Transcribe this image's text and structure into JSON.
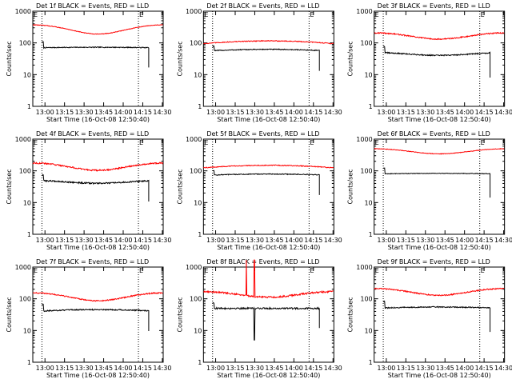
{
  "figure": {
    "name": "RHESSI detector count-rate grid"
  },
  "colors": {
    "events": "#000000",
    "lld": "#ff0000",
    "axes": "#000000",
    "background": "#ffffff"
  },
  "chart_data": [
    {
      "type": "line",
      "detector": "1f",
      "title": "Det 1f BLACK = Events, RED = LLD",
      "xlabel": "Start Time (16-Oct-08 12:50:40)",
      "ylabel": "Counts/sec",
      "xticks": [
        "13:00",
        "13:15",
        "13:30",
        "13:45",
        "14:00",
        "14:15",
        "14:30"
      ],
      "yticks": [
        "1",
        "10",
        "100",
        "1000"
      ],
      "ylim": [
        1,
        1000
      ],
      "yscale": "log",
      "markers": [
        "E",
        "E"
      ],
      "marker_minutes": [
        0,
        81
      ],
      "vlines_minutes": [
        7,
        81
      ],
      "xlim_minutes": [
        0,
        100
      ],
      "time_start": "12:50:40",
      "series": [
        {
          "name": "Events",
          "color": "black",
          "shape": "bump",
          "level": 70,
          "amp": 0.04,
          "t0": 7,
          "t1": 89,
          "edge_start": 1.5,
          "edge_end": 0.4,
          "noise": 0.03
        },
        {
          "name": "LLD",
          "color": "red",
          "shape": "valley",
          "level": 280,
          "amp": 0.32,
          "t0": 0,
          "t1": 100,
          "noise": 0.02
        }
      ]
    },
    {
      "type": "line",
      "detector": "2f",
      "title": "Det 2f BLACK = Events, RED = LLD",
      "xlabel": "Start Time (16-Oct-08 12:50:40)",
      "ylabel": "Counts/sec",
      "xticks": [
        "13:00",
        "13:15",
        "13:30",
        "13:45",
        "14:00",
        "14:15",
        "14:30"
      ],
      "yticks": [
        "1",
        "10",
        "100",
        "1000"
      ],
      "ylim": [
        1,
        1000
      ],
      "yscale": "log",
      "markers": [
        "E",
        "E"
      ],
      "marker_minutes": [
        0,
        81
      ],
      "vlines_minutes": [
        7,
        81
      ],
      "xlim_minutes": [
        0,
        100
      ],
      "time_start": "12:50:40",
      "series": [
        {
          "name": "Events",
          "color": "black",
          "shape": "bump",
          "level": 55,
          "amp": 0.14,
          "t0": 7,
          "t1": 89,
          "edge_start": 1.4,
          "edge_end": 0.4,
          "noise": 0.03
        },
        {
          "name": "LLD",
          "color": "red",
          "shape": "bump",
          "level": 95,
          "amp": 0.22,
          "t0": 0,
          "t1": 100,
          "noise": 0.03
        }
      ]
    },
    {
      "type": "line",
      "detector": "3f",
      "title": "Det 3f BLACK = Events, RED = LLD",
      "xlabel": "Start Time (16-Oct-08 12:50:40)",
      "ylabel": "Counts/sec",
      "xticks": [
        "13:00",
        "13:15",
        "13:30",
        "13:45",
        "14:00",
        "14:15",
        "14:30"
      ],
      "yticks": [
        "1",
        "10",
        "100",
        "1000"
      ],
      "ylim": [
        1,
        1000
      ],
      "yscale": "log",
      "markers": [
        "E",
        "E"
      ],
      "marker_minutes": [
        0,
        81
      ],
      "vlines_minutes": [
        7,
        81
      ],
      "xlim_minutes": [
        0,
        100
      ],
      "time_start": "12:50:40",
      "series": [
        {
          "name": "Events",
          "color": "black",
          "shape": "valley",
          "level": 45,
          "amp": 0.1,
          "t0": 7,
          "t1": 89,
          "edge_start": 1.6,
          "edge_end": 0.3,
          "noise": 0.04
        },
        {
          "name": "LLD",
          "color": "red",
          "shape": "valley",
          "level": 170,
          "amp": 0.22,
          "t0": 0,
          "t1": 100,
          "noise": 0.04
        }
      ]
    },
    {
      "type": "line",
      "detector": "4f",
      "title": "Det 4f BLACK = Events, RED = LLD",
      "xlabel": "Start Time (16-Oct-08 12:50:40)",
      "ylabel": "Counts/sec",
      "xticks": [
        "13:00",
        "13:15",
        "13:30",
        "13:45",
        "14:00",
        "14:15",
        "14:30"
      ],
      "yticks": [
        "1",
        "10",
        "100",
        "1000"
      ],
      "ylim": [
        1,
        1000
      ],
      "yscale": "log",
      "markers": [
        "E",
        "E"
      ],
      "marker_minutes": [
        0,
        81
      ],
      "vlines_minutes": [
        7,
        81
      ],
      "xlim_minutes": [
        0,
        100
      ],
      "time_start": "12:50:40",
      "series": [
        {
          "name": "Events",
          "color": "black",
          "shape": "valley",
          "level": 45,
          "amp": 0.1,
          "t0": 7,
          "t1": 89,
          "edge_start": 1.5,
          "edge_end": 0.4,
          "noise": 0.05
        },
        {
          "name": "LLD",
          "color": "red",
          "shape": "valley",
          "level": 140,
          "amp": 0.26,
          "t0": 0,
          "t1": 100,
          "noise": 0.05
        }
      ]
    },
    {
      "type": "line",
      "detector": "5f",
      "title": "Det 5f BLACK = Events, RED = LLD",
      "xlabel": "Start Time (16-Oct-08 12:50:40)",
      "ylabel": "Counts/sec",
      "xticks": [
        "13:00",
        "13:15",
        "13:30",
        "13:45",
        "14:00",
        "14:15",
        "14:30"
      ],
      "yticks": [
        "1",
        "10",
        "100",
        "1000"
      ],
      "ylim": [
        1,
        1000
      ],
      "yscale": "log",
      "markers": [
        "E",
        "E"
      ],
      "marker_minutes": [
        0,
        81
      ],
      "vlines_minutes": [
        7,
        81
      ],
      "xlim_minutes": [
        0,
        100
      ],
      "time_start": "12:50:40",
      "series": [
        {
          "name": "Events",
          "color": "black",
          "shape": "bump",
          "level": 72,
          "amp": 0.1,
          "t0": 7,
          "t1": 89,
          "edge_start": 1.4,
          "edge_end": 0.4,
          "noise": 0.03
        },
        {
          "name": "LLD",
          "color": "red",
          "shape": "bump",
          "level": 125,
          "amp": 0.2,
          "t0": 0,
          "t1": 100,
          "noise": 0.03
        }
      ]
    },
    {
      "type": "line",
      "detector": "6f",
      "title": "Det 6f BLACK = Events, RED = LLD",
      "xlabel": "Start Time (16-Oct-08 12:50:40)",
      "ylabel": "Counts/sec",
      "xticks": [
        "13:00",
        "13:15",
        "13:30",
        "13:45",
        "14:00",
        "14:15",
        "14:30"
      ],
      "yticks": [
        "1",
        "10",
        "100",
        "1000"
      ],
      "ylim": [
        1,
        1000
      ],
      "yscale": "log",
      "markers": [
        "E",
        "E"
      ],
      "marker_minutes": [
        0,
        81
      ],
      "vlines_minutes": [
        7,
        81
      ],
      "xlim_minutes": [
        0,
        100
      ],
      "time_start": "12:50:40",
      "series": [
        {
          "name": "Events",
          "color": "black",
          "shape": "bump",
          "level": 80,
          "amp": 0.04,
          "t0": 7,
          "t1": 89,
          "edge_start": 1.5,
          "edge_end": 0.3,
          "noise": 0.02
        },
        {
          "name": "LLD",
          "color": "red",
          "shape": "valley",
          "level": 420,
          "amp": 0.18,
          "t0": 0,
          "t1": 100,
          "noise": 0.02
        }
      ]
    },
    {
      "type": "line",
      "detector": "7f",
      "title": "Det 7f BLACK = Events, RED = LLD",
      "xlabel": "Start Time (16-Oct-08 12:50:40)",
      "ylabel": "Counts/sec",
      "xticks": [
        "13:00",
        "13:15",
        "13:30",
        "13:45",
        "14:00",
        "14:15",
        "14:30"
      ],
      "yticks": [
        "1",
        "10",
        "100",
        "1000"
      ],
      "ylim": [
        1,
        1000
      ],
      "yscale": "log",
      "markers": [
        "E",
        "E"
      ],
      "marker_minutes": [
        0,
        81
      ],
      "vlines_minutes": [
        7,
        81
      ],
      "xlim_minutes": [
        0,
        100
      ],
      "time_start": "12:50:40",
      "series": [
        {
          "name": "Events",
          "color": "black",
          "shape": "bump",
          "level": 40,
          "amp": 0.14,
          "t0": 7,
          "t1": 89,
          "edge_start": 1.6,
          "edge_end": 0.4,
          "noise": 0.04
        },
        {
          "name": "LLD",
          "color": "red",
          "shape": "valley",
          "level": 120,
          "amp": 0.28,
          "t0": 0,
          "t1": 100,
          "noise": 0.04
        }
      ]
    },
    {
      "type": "line",
      "detector": "8f",
      "title": "Det 8f BLACK = Events, RED = LLD",
      "xlabel": "Start Time (16-Oct-08 12:50:40)",
      "ylabel": "Counts/sec",
      "xticks": [
        "13:00",
        "13:15",
        "13:30",
        "13:45",
        "14:00",
        "14:15",
        "14:30"
      ],
      "yticks": [
        "1",
        "10",
        "100",
        "1000"
      ],
      "ylim": [
        1,
        1000
      ],
      "yscale": "log",
      "markers": [
        "E",
        "E"
      ],
      "marker_minutes": [
        0,
        81
      ],
      "vlines_minutes": [
        7,
        81
      ],
      "xlim_minutes": [
        0,
        100
      ],
      "time_start": "12:50:40",
      "series": [
        {
          "name": "Events",
          "color": "black",
          "shape": "flat",
          "level": 50,
          "amp": 0.0,
          "t0": 7,
          "t1": 89,
          "edge_start": 1.5,
          "edge_end": 0.4,
          "noise": 0.06,
          "spikes": [
            {
              "minute": 39,
              "factor": 0.1
            }
          ]
        },
        {
          "name": "LLD",
          "color": "red",
          "shape": "valley",
          "level": 140,
          "amp": 0.2,
          "t0": 0,
          "t1": 100,
          "noise": 0.06,
          "spikes": [
            {
              "minute": 33,
              "factor": 12
            },
            {
              "minute": 39,
              "factor": 12
            }
          ]
        }
      ]
    },
    {
      "type": "line",
      "detector": "9f",
      "title": "Det 9f BLACK = Events, RED = LLD",
      "xlabel": "Start Time (16-Oct-08 12:50:40)",
      "ylabel": "Counts/sec",
      "xticks": [
        "13:00",
        "13:15",
        "13:30",
        "13:45",
        "14:00",
        "14:15",
        "14:30"
      ],
      "yticks": [
        "1",
        "10",
        "100",
        "1000"
      ],
      "ylim": [
        1,
        1000
      ],
      "yscale": "log",
      "markers": [
        "E",
        "E"
      ],
      "marker_minutes": [
        0,
        81
      ],
      "vlines_minutes": [
        7,
        81
      ],
      "xlim_minutes": [
        0,
        100
      ],
      "time_start": "12:50:40",
      "series": [
        {
          "name": "Events",
          "color": "black",
          "shape": "bump",
          "level": 50,
          "amp": 0.1,
          "t0": 7,
          "t1": 89,
          "edge_start": 1.6,
          "edge_end": 0.3,
          "noise": 0.04
        },
        {
          "name": "LLD",
          "color": "red",
          "shape": "valley",
          "level": 170,
          "amp": 0.24,
          "t0": 0,
          "t1": 100,
          "noise": 0.04
        }
      ]
    }
  ]
}
